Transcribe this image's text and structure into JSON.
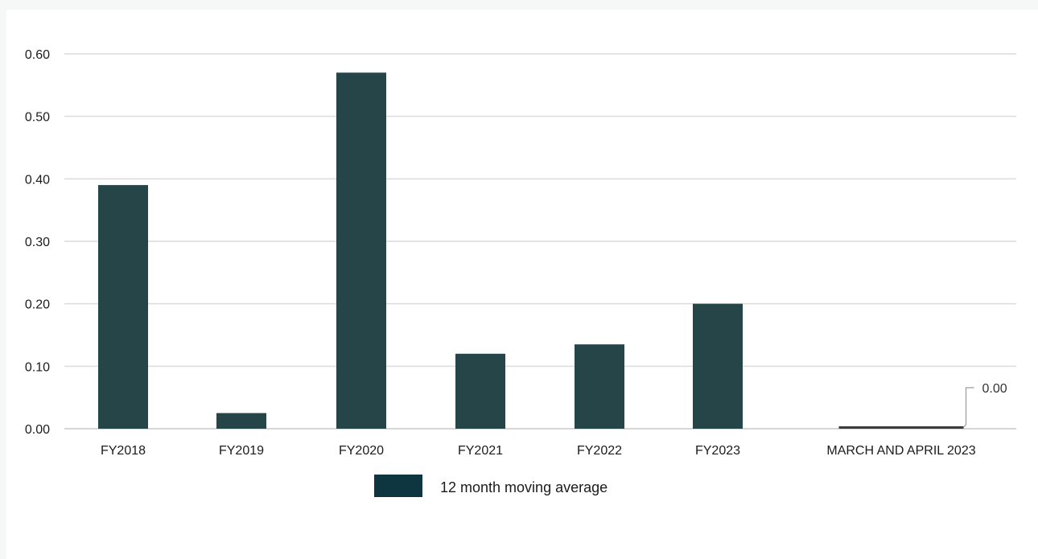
{
  "chart_data": {
    "type": "bar",
    "categories": [
      "FY2018",
      "FY2019",
      "FY2020",
      "FY2021",
      "FY2022",
      "FY2023",
      "MARCH AND APRIL 2023"
    ],
    "series": [
      {
        "name": "12 month moving average",
        "values": [
          0.39,
          0.025,
          0.57,
          0.12,
          0.135,
          0.2,
          0.0
        ],
        "color": "#264549"
      }
    ],
    "y_ticks": [
      "0.00",
      "0.10",
      "0.20",
      "0.30",
      "0.40",
      "0.50",
      "0.60"
    ],
    "ylim": [
      0,
      0.6
    ],
    "data_labels": [
      {
        "category_index": 6,
        "text": "0.00"
      }
    ],
    "grid": true,
    "legend_position": "bottom",
    "legend_swatch_color": "#0d3640",
    "highlight_bar_color": "#3c3c3c",
    "title": "",
    "xlabel": "",
    "ylabel": ""
  }
}
